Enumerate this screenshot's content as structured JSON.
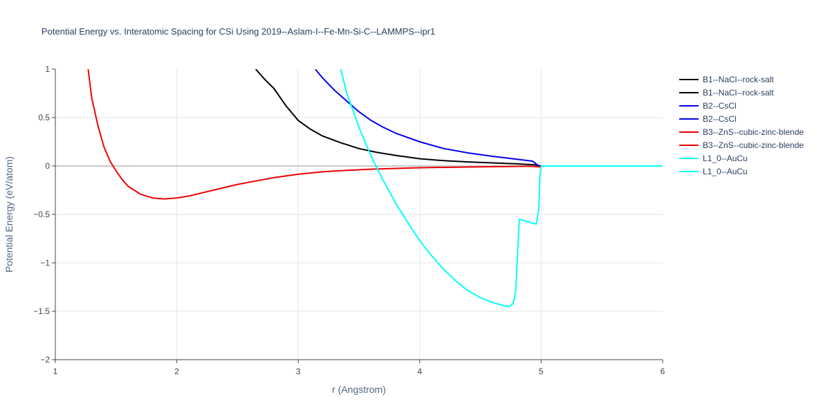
{
  "chart_data": {
    "type": "line",
    "title": "Potential Energy vs. Interatomic Spacing for CSi Using 2019--Aslam-I--Fe-Mn-Si-C--LAMMPS--ipr1",
    "xlabel": "r (Angstrom)",
    "ylabel": "Potential Energy (eV/atom)",
    "xlim": [
      1,
      6
    ],
    "ylim": [
      -2,
      1
    ],
    "xticks": [
      "1",
      "2",
      "3",
      "4",
      "5",
      "6"
    ],
    "yticks": [
      "1",
      "0.5",
      "0",
      "−0.5",
      "−1",
      "−1.5",
      "−2"
    ],
    "grid": true,
    "legend_position": "right",
    "series": [
      {
        "name": "B1--NaCl--rock-salt",
        "color": "#000000",
        "x": [
          2.65,
          2.72,
          2.8,
          2.9,
          3.0,
          3.1,
          3.2,
          3.35,
          3.5,
          3.65,
          3.8,
          4.0,
          4.2,
          4.4,
          4.6,
          4.8,
          4.95,
          5.0
        ],
        "y": [
          1.0,
          0.9,
          0.8,
          0.62,
          0.47,
          0.38,
          0.31,
          0.24,
          0.18,
          0.14,
          0.11,
          0.075,
          0.055,
          0.042,
          0.032,
          0.022,
          0.012,
          0.0
        ]
      },
      {
        "name": "B1--NaCl--rock-salt",
        "color": "#000000",
        "x": [],
        "y": []
      },
      {
        "name": "B2--CsCl",
        "color": "#0000ee",
        "x": [
          3.14,
          3.2,
          3.3,
          3.4,
          3.5,
          3.6,
          3.7,
          3.8,
          4.0,
          4.2,
          4.4,
          4.6,
          4.8,
          4.93,
          4.97,
          5.0
        ],
        "y": [
          1.0,
          0.91,
          0.78,
          0.67,
          0.56,
          0.47,
          0.4,
          0.34,
          0.25,
          0.18,
          0.135,
          0.1,
          0.07,
          0.05,
          0.01,
          -0.015
        ]
      },
      {
        "name": "B2--CsCl",
        "color": "#0000ee",
        "x": [],
        "y": []
      },
      {
        "name": "B3--ZnS--cubic-zinc-blende",
        "color": "#ee0000",
        "x": [
          1.27,
          1.3,
          1.35,
          1.4,
          1.45,
          1.5,
          1.55,
          1.6,
          1.7,
          1.8,
          1.9,
          2.0,
          2.1,
          2.2,
          2.35,
          2.5,
          2.65,
          2.8,
          3.0,
          3.2,
          3.4,
          3.6,
          3.8,
          4.0,
          4.3,
          4.6,
          4.9,
          5.0
        ],
        "y": [
          1.0,
          0.7,
          0.42,
          0.2,
          0.05,
          -0.05,
          -0.14,
          -0.21,
          -0.29,
          -0.33,
          -0.34,
          -0.33,
          -0.31,
          -0.28,
          -0.235,
          -0.19,
          -0.155,
          -0.12,
          -0.085,
          -0.06,
          -0.045,
          -0.033,
          -0.025,
          -0.018,
          -0.012,
          -0.007,
          -0.003,
          -0.01
        ]
      },
      {
        "name": "B3--ZnS--cubic-zinc-blende",
        "color": "#ee0000",
        "x": [],
        "y": []
      },
      {
        "name": "L1_0--AuCu",
        "color": "#00ffff",
        "x": [
          3.35,
          3.4,
          3.5,
          3.6,
          3.7,
          3.8,
          3.9,
          4.0,
          4.1,
          4.2,
          4.3,
          4.4,
          4.5,
          4.6,
          4.7,
          4.74,
          4.77,
          4.79,
          4.8,
          4.82,
          4.96,
          4.98,
          4.99,
          5.0,
          5.5,
          6.0
        ],
        "y": [
          1.0,
          0.75,
          0.4,
          0.1,
          -0.15,
          -0.38,
          -0.58,
          -0.77,
          -0.93,
          -1.07,
          -1.19,
          -1.29,
          -1.36,
          -1.41,
          -1.445,
          -1.45,
          -1.42,
          -1.3,
          -1.05,
          -0.55,
          -0.6,
          -0.45,
          -0.1,
          0.0,
          0.0,
          0.0
        ]
      },
      {
        "name": "L1_0--AuCu",
        "color": "#00ffff",
        "x": [],
        "y": []
      }
    ]
  }
}
